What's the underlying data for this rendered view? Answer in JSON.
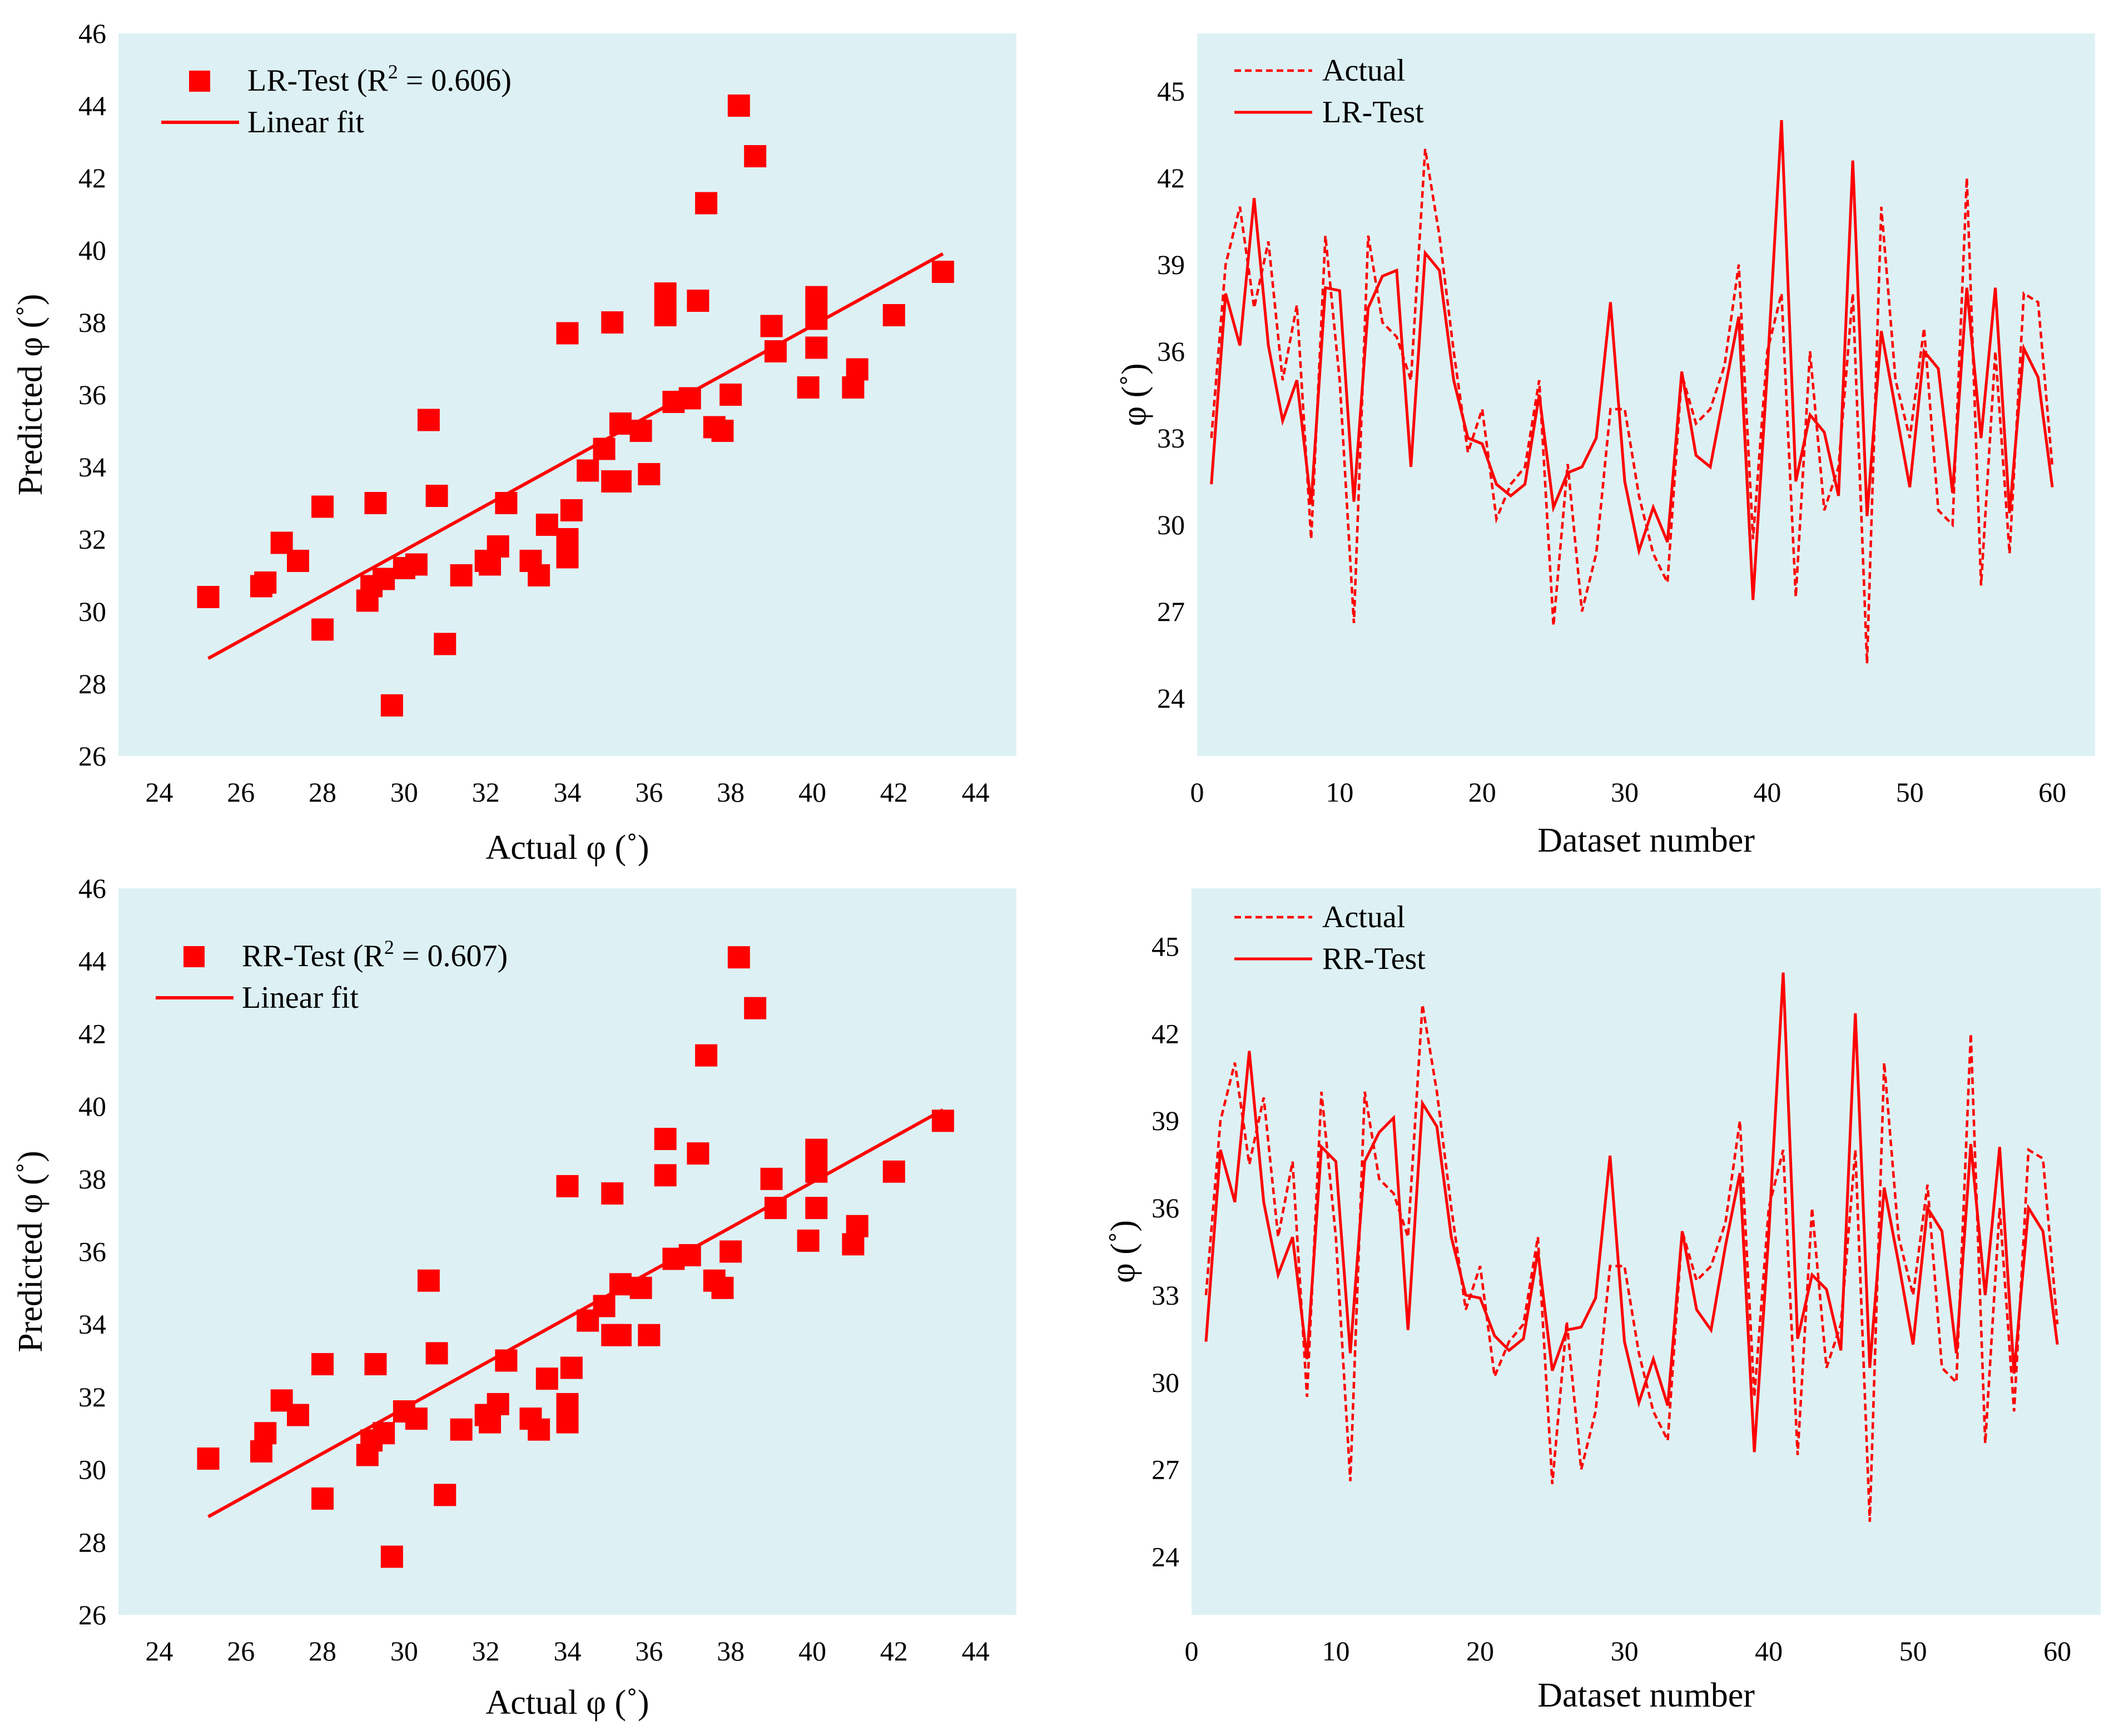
{
  "colors": {
    "panel_bg": "#DDF1F4",
    "series": "#FF0000"
  },
  "chart_data": [
    {
      "id": "lr_scatter",
      "type": "scatter",
      "title": "",
      "xlabel": "Actual φ (˚)",
      "ylabel": "Predicted φ (˚)",
      "xlim": [
        23,
        45
      ],
      "ylim": [
        26,
        46
      ],
      "xticks": [
        "24",
        "26",
        "28",
        "30",
        "32",
        "34",
        "36",
        "38",
        "40",
        "42",
        "44"
      ],
      "yticks": [
        "26",
        "28",
        "30",
        "32",
        "34",
        "36",
        "38",
        "40",
        "42",
        "44",
        "46"
      ],
      "legend": {
        "position": "top-left",
        "marker_label": "LR-Test (R",
        "r2_sup": "2",
        "r2_value": " = 0.606)",
        "line_label": "Linear fit"
      },
      "fit": {
        "x": [
          25.2,
          43.2
        ],
        "y": [
          28.7,
          39.9
        ]
      },
      "points": [
        [
          25.2,
          30.4
        ],
        [
          26.5,
          30.7
        ],
        [
          26.6,
          30.8
        ],
        [
          27.0,
          31.9
        ],
        [
          27.4,
          31.4
        ],
        [
          28.0,
          32.9
        ],
        [
          28.0,
          29.5
        ],
        [
          29.1,
          30.3
        ],
        [
          29.2,
          30.7
        ],
        [
          29.3,
          33.0
        ],
        [
          29.5,
          30.9
        ],
        [
          29.7,
          27.4
        ],
        [
          30.0,
          31.2
        ],
        [
          30.3,
          31.3
        ],
        [
          30.6,
          35.3
        ],
        [
          30.8,
          33.2
        ],
        [
          31.0,
          29.1
        ],
        [
          31.4,
          31.0
        ],
        [
          32.0,
          31.4
        ],
        [
          32.1,
          31.3
        ],
        [
          32.3,
          31.8
        ],
        [
          32.5,
          33.0
        ],
        [
          33.1,
          31.4
        ],
        [
          33.3,
          31.0
        ],
        [
          33.5,
          32.4
        ],
        [
          34.0,
          37.7
        ],
        [
          34.0,
          32.0
        ],
        [
          34.0,
          31.5
        ],
        [
          34.1,
          32.8
        ],
        [
          34.5,
          33.9
        ],
        [
          34.9,
          34.5
        ],
        [
          35.1,
          33.6
        ],
        [
          35.1,
          38.0
        ],
        [
          35.3,
          33.6
        ],
        [
          35.3,
          35.2
        ],
        [
          35.8,
          35.0
        ],
        [
          36.0,
          33.8
        ],
        [
          36.4,
          38.8
        ],
        [
          36.4,
          38.2
        ],
        [
          36.6,
          35.8
        ],
        [
          37.0,
          35.9
        ],
        [
          37.2,
          38.6
        ],
        [
          37.4,
          41.3
        ],
        [
          37.6,
          35.1
        ],
        [
          37.8,
          35.0
        ],
        [
          38.0,
          36.0
        ],
        [
          38.2,
          44.0
        ],
        [
          38.6,
          42.6
        ],
        [
          39.0,
          37.9
        ],
        [
          39.1,
          37.2
        ],
        [
          39.9,
          36.2
        ],
        [
          40.1,
          38.7
        ],
        [
          40.1,
          38.1
        ],
        [
          40.1,
          37.3
        ],
        [
          41.0,
          36.2
        ],
        [
          41.1,
          36.7
        ],
        [
          42.0,
          38.2
        ],
        [
          43.2,
          39.4
        ]
      ]
    },
    {
      "id": "lr_series",
      "type": "line",
      "title": "",
      "xlabel": "Dataset number",
      "ylabel": "φ (˚)",
      "xlim": [
        0,
        63
      ],
      "ylim": [
        22,
        47
      ],
      "xticks": [
        "0",
        "10",
        "20",
        "30",
        "40",
        "50",
        "60"
      ],
      "yticks": [
        "24",
        "27",
        "30",
        "33",
        "36",
        "39",
        "42",
        "45"
      ],
      "legend": {
        "position": "top-left",
        "dashed_label": "Actual",
        "solid_label": "LR-Test"
      },
      "x": [
        1,
        2,
        3,
        4,
        5,
        6,
        7,
        8,
        9,
        10,
        11,
        12,
        13,
        14,
        15,
        16,
        17,
        18,
        19,
        20,
        21,
        22,
        23,
        24,
        25,
        26,
        27,
        28,
        29,
        30,
        31,
        32,
        33,
        34,
        35,
        36,
        37,
        38,
        39,
        40,
        41,
        42,
        43,
        44,
        45,
        46,
        47,
        48,
        49,
        50,
        51,
        52,
        53,
        54,
        55,
        56,
        57,
        58,
        59,
        60
      ],
      "series": [
        {
          "name": "Actual",
          "style": "dashed",
          "values": [
            33.0,
            39.0,
            41.0,
            37.5,
            39.8,
            35.0,
            37.6,
            29.5,
            40.0,
            35.0,
            26.6,
            40.0,
            37.0,
            36.5,
            35.0,
            43.0,
            40.0,
            36.0,
            32.5,
            34.0,
            30.2,
            31.4,
            32.0,
            35.0,
            26.5,
            32.1,
            27.0,
            29.0,
            34.0,
            34.0,
            31.0,
            29.0,
            28.0,
            35.2,
            33.5,
            34.0,
            35.5,
            39.0,
            29.5,
            36.0,
            38.0,
            27.5,
            36.0,
            30.5,
            32.0,
            38.0,
            25.2,
            41.0,
            35.0,
            33.0,
            36.8,
            30.5,
            30.0,
            42.0,
            27.9,
            36.0,
            29.0,
            38.0,
            37.7,
            32.0
          ]
        },
        {
          "name": "LR-Test",
          "style": "solid",
          "values": [
            31.4,
            38.0,
            36.2,
            41.3,
            36.2,
            33.6,
            35.0,
            30.7,
            38.2,
            38.1,
            30.8,
            37.5,
            38.6,
            38.8,
            32.0,
            39.4,
            38.8,
            35.0,
            33.0,
            32.8,
            31.4,
            31.0,
            31.4,
            34.5,
            30.6,
            31.8,
            32.0,
            33.0,
            37.7,
            31.5,
            29.1,
            30.6,
            29.4,
            35.3,
            32.4,
            32.0,
            34.6,
            37.2,
            27.4,
            35.3,
            44.0,
            31.5,
            33.8,
            33.2,
            31.0,
            42.6,
            30.3,
            36.7,
            34.0,
            31.3,
            36.0,
            35.4,
            31.1,
            38.2,
            33.0,
            38.2,
            30.4,
            36.1,
            35.1,
            31.3
          ]
        }
      ]
    },
    {
      "id": "rr_scatter",
      "type": "scatter",
      "title": "",
      "xlabel": "Actual φ (˚)",
      "ylabel": "Predicted φ (˚)",
      "xlim": [
        23,
        45
      ],
      "ylim": [
        26,
        46
      ],
      "xticks": [
        "24",
        "26",
        "28",
        "30",
        "32",
        "34",
        "36",
        "38",
        "40",
        "42",
        "44"
      ],
      "yticks": [
        "26",
        "28",
        "30",
        "32",
        "34",
        "36",
        "38",
        "40",
        "42",
        "44",
        "46"
      ],
      "legend": {
        "position": "top-left",
        "marker_label": "RR-Test (R",
        "r2_sup": "2",
        "r2_value": " = 0.607)",
        "line_label": "Linear fit"
      },
      "fit": {
        "x": [
          25.2,
          43.2
        ],
        "y": [
          28.7,
          39.9
        ]
      },
      "points": [
        [
          25.2,
          30.3
        ],
        [
          26.5,
          30.5
        ],
        [
          26.6,
          31.0
        ],
        [
          27.0,
          31.9
        ],
        [
          27.4,
          31.5
        ],
        [
          28.0,
          32.9
        ],
        [
          28.0,
          29.2
        ],
        [
          29.1,
          30.4
        ],
        [
          29.2,
          30.8
        ],
        [
          29.3,
          32.9
        ],
        [
          29.5,
          31.0
        ],
        [
          29.7,
          27.6
        ],
        [
          30.0,
          31.6
        ],
        [
          30.3,
          31.4
        ],
        [
          30.6,
          35.2
        ],
        [
          30.8,
          33.2
        ],
        [
          31.0,
          29.3
        ],
        [
          31.4,
          31.1
        ],
        [
          32.0,
          31.5
        ],
        [
          32.1,
          31.3
        ],
        [
          32.3,
          31.8
        ],
        [
          32.5,
          33.0
        ],
        [
          33.1,
          31.4
        ],
        [
          33.3,
          31.1
        ],
        [
          33.5,
          32.5
        ],
        [
          34.0,
          37.8
        ],
        [
          34.0,
          31.8
        ],
        [
          34.0,
          31.3
        ],
        [
          34.1,
          32.8
        ],
        [
          34.5,
          34.1
        ],
        [
          34.9,
          34.5
        ],
        [
          35.1,
          33.7
        ],
        [
          35.1,
          37.6
        ],
        [
          35.3,
          33.7
        ],
        [
          35.3,
          35.1
        ],
        [
          35.8,
          35.0
        ],
        [
          36.0,
          33.7
        ],
        [
          36.4,
          39.1
        ],
        [
          36.4,
          38.1
        ],
        [
          36.6,
          35.8
        ],
        [
          37.0,
          35.9
        ],
        [
          37.2,
          38.7
        ],
        [
          37.4,
          41.4
        ],
        [
          37.6,
          35.2
        ],
        [
          37.8,
          35.0
        ],
        [
          38.0,
          36.0
        ],
        [
          38.2,
          44.1
        ],
        [
          38.6,
          42.7
        ],
        [
          39.0,
          38.0
        ],
        [
          39.1,
          37.2
        ],
        [
          39.9,
          36.3
        ],
        [
          40.1,
          38.8
        ],
        [
          40.1,
          38.2
        ],
        [
          40.1,
          37.2
        ],
        [
          41.0,
          36.2
        ],
        [
          41.1,
          36.7
        ],
        [
          42.0,
          38.2
        ],
        [
          43.2,
          39.6
        ]
      ]
    },
    {
      "id": "rr_series",
      "type": "line",
      "title": "",
      "xlabel": "Dataset number",
      "ylabel": "φ (˚)",
      "xlim": [
        0,
        63
      ],
      "ylim": [
        22,
        47
      ],
      "xticks": [
        "0",
        "10",
        "20",
        "30",
        "40",
        "50",
        "60"
      ],
      "yticks": [
        "24",
        "27",
        "30",
        "33",
        "36",
        "39",
        "42",
        "45"
      ],
      "legend": {
        "position": "top-left",
        "dashed_label": "Actual",
        "solid_label": "RR-Test"
      },
      "x": [
        1,
        2,
        3,
        4,
        5,
        6,
        7,
        8,
        9,
        10,
        11,
        12,
        13,
        14,
        15,
        16,
        17,
        18,
        19,
        20,
        21,
        22,
        23,
        24,
        25,
        26,
        27,
        28,
        29,
        30,
        31,
        32,
        33,
        34,
        35,
        36,
        37,
        38,
        39,
        40,
        41,
        42,
        43,
        44,
        45,
        46,
        47,
        48,
        49,
        50,
        51,
        52,
        53,
        54,
        55,
        56,
        57,
        58,
        59,
        60
      ],
      "series": [
        {
          "name": "Actual",
          "style": "dashed",
          "values": [
            33.0,
            39.0,
            41.0,
            37.5,
            39.8,
            35.0,
            37.6,
            29.5,
            40.0,
            35.0,
            26.6,
            40.0,
            37.0,
            36.5,
            35.0,
            43.0,
            40.0,
            36.0,
            32.5,
            34.0,
            30.2,
            31.4,
            32.0,
            35.0,
            26.5,
            32.1,
            27.0,
            29.0,
            34.0,
            34.0,
            31.0,
            29.0,
            28.0,
            35.2,
            33.5,
            34.0,
            35.5,
            39.0,
            29.5,
            36.0,
            38.0,
            27.5,
            36.0,
            30.5,
            32.0,
            38.0,
            25.2,
            41.0,
            35.0,
            33.0,
            36.8,
            30.5,
            30.0,
            42.0,
            27.9,
            36.0,
            29.0,
            38.0,
            37.7,
            32.0
          ]
        },
        {
          "name": "RR-Test",
          "style": "solid",
          "values": [
            31.4,
            38.0,
            36.2,
            41.4,
            36.2,
            33.7,
            35.0,
            30.8,
            38.1,
            37.6,
            31.0,
            37.6,
            38.6,
            39.1,
            31.8,
            39.6,
            38.8,
            35.0,
            33.0,
            32.9,
            31.6,
            31.1,
            31.5,
            34.5,
            30.4,
            31.8,
            31.9,
            32.9,
            37.8,
            31.4,
            29.3,
            30.8,
            29.2,
            35.2,
            32.5,
            31.8,
            34.7,
            37.2,
            27.6,
            35.1,
            44.1,
            31.5,
            33.7,
            33.2,
            31.1,
            42.7,
            30.5,
            36.7,
            34.1,
            31.3,
            36.0,
            35.2,
            31.0,
            38.2,
            33.0,
            38.1,
            30.3,
            36.0,
            35.2,
            31.3
          ]
        }
      ]
    }
  ]
}
